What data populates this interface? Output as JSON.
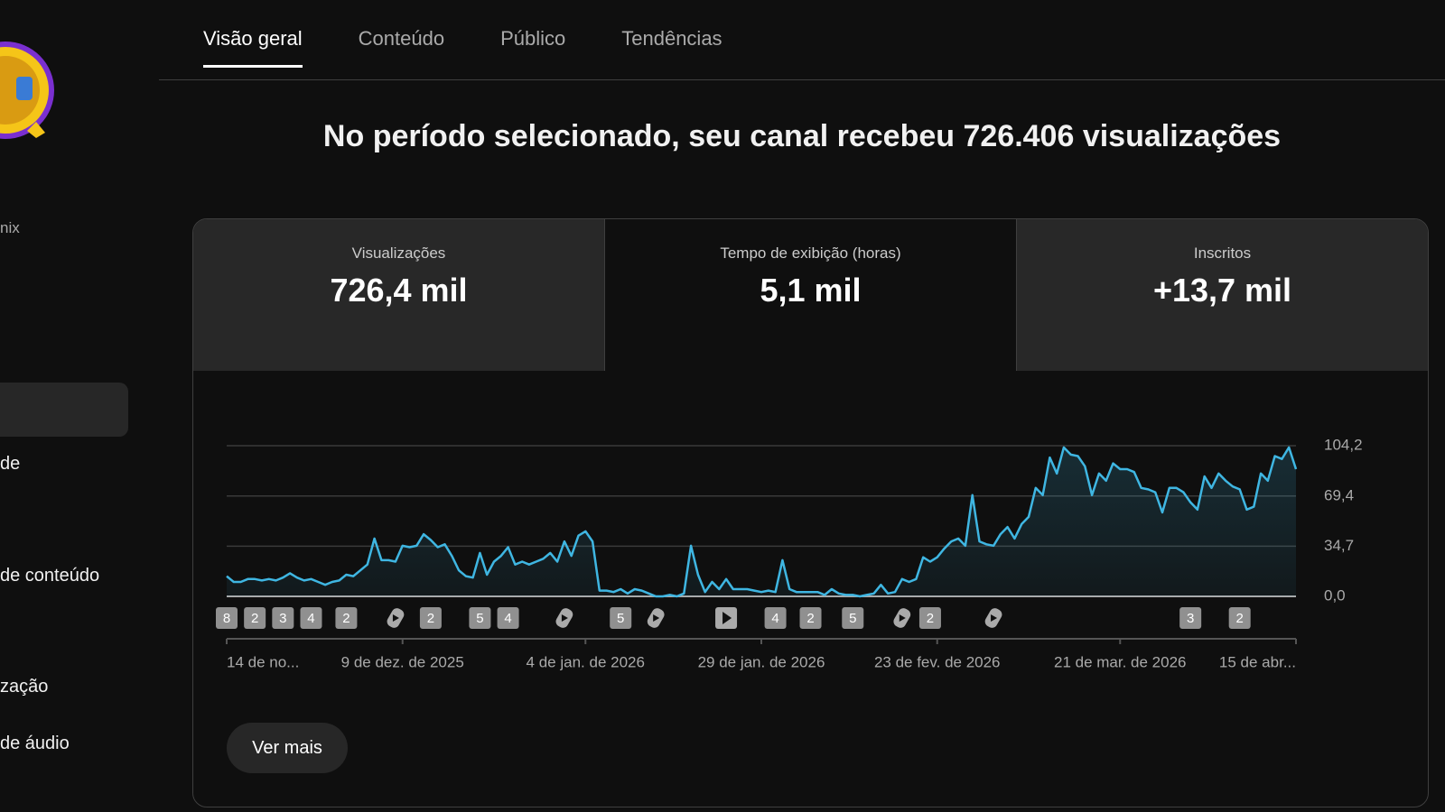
{
  "sidebar": {
    "channel_suffix": "nix",
    "items": [
      "de",
      "de conteúdo",
      "zação",
      "de áudio"
    ]
  },
  "tabs": [
    "Visão geral",
    "Conteúdo",
    "Público",
    "Tendências"
  ],
  "active_tab": 0,
  "headline": "No período selecionado, seu canal recebeu 726.406 visualizações",
  "metrics": [
    {
      "label": "Visualizações",
      "value": "726,4 mil"
    },
    {
      "label": "Tempo de exibição (horas)",
      "value": "5,1 mil"
    },
    {
      "label": "Inscritos",
      "value": "+13,7 mil"
    }
  ],
  "active_metric": 1,
  "chart_data": {
    "type": "line",
    "color": "#3fb6e2",
    "grid": true,
    "xlim": [
      0,
      152
    ],
    "xticks": [
      {
        "value": 0,
        "label": "14 de no..."
      },
      {
        "value": 25,
        "label": "9 de dez. de 2025"
      },
      {
        "value": 51,
        "label": "4 de jan. de 2026"
      },
      {
        "value": 76,
        "label": "29 de jan. de 2026"
      },
      {
        "value": 101,
        "label": "23 de fev. de 2026"
      },
      {
        "value": 127,
        "label": "21 de mar. de 2026"
      },
      {
        "value": 152,
        "label": "15 de abr..."
      }
    ],
    "ylim": [
      0,
      104.2
    ],
    "yticks": [
      {
        "value": 0,
        "label": "0,0"
      },
      {
        "value": 34.7,
        "label": "34,7"
      },
      {
        "value": 69.4,
        "label": "69,4"
      },
      {
        "value": 104.2,
        "label": "104,2"
      }
    ],
    "values": [
      14,
      10,
      10,
      12,
      12,
      11,
      12,
      11,
      13,
      16,
      13,
      11,
      12,
      10,
      8,
      10,
      11,
      15,
      14,
      18,
      22,
      40,
      25,
      25,
      24,
      35,
      34,
      35,
      43,
      39,
      34,
      36,
      28,
      18,
      14,
      13,
      30,
      15,
      24,
      28,
      34,
      22,
      24,
      22,
      24,
      26,
      30,
      24,
      38,
      28,
      42,
      45,
      38,
      4,
      4,
      3,
      5,
      2,
      5,
      4,
      2,
      0,
      0,
      1,
      0,
      2,
      35,
      15,
      3,
      10,
      5,
      12,
      5,
      5,
      5,
      4,
      3,
      4,
      3,
      25,
      5,
      3,
      3,
      3,
      3,
      1,
      5,
      2,
      1,
      1,
      0,
      1,
      2,
      8,
      2,
      3,
      12,
      10,
      12,
      27,
      24,
      27,
      33,
      38,
      40,
      35,
      70,
      38,
      36,
      35,
      43,
      48,
      40,
      50,
      55,
      75,
      70,
      96,
      85,
      103,
      98,
      97,
      90,
      70,
      85,
      80,
      92,
      88,
      88,
      86,
      75,
      74,
      72,
      58,
      75,
      75,
      72,
      65,
      60,
      83,
      75,
      85,
      80,
      76,
      74,
      60,
      62,
      85,
      80,
      97,
      95,
      103,
      88
    ],
    "events": [
      {
        "x": 0,
        "label": "8"
      },
      {
        "x": 4,
        "label": "2"
      },
      {
        "x": 8,
        "label": "3"
      },
      {
        "x": 12,
        "label": "4"
      },
      {
        "x": 17,
        "label": "2"
      },
      {
        "x": 24,
        "icon": "shorts"
      },
      {
        "x": 29,
        "label": "2"
      },
      {
        "x": 36,
        "label": "5"
      },
      {
        "x": 40,
        "label": "4"
      },
      {
        "x": 48,
        "icon": "shorts"
      },
      {
        "x": 56,
        "label": "5"
      },
      {
        "x": 61,
        "icon": "shorts"
      },
      {
        "x": 71,
        "icon": "video"
      },
      {
        "x": 78,
        "label": "4"
      },
      {
        "x": 83,
        "label": "2"
      },
      {
        "x": 89,
        "label": "5"
      },
      {
        "x": 96,
        "icon": "shorts"
      },
      {
        "x": 100,
        "label": "2"
      },
      {
        "x": 109,
        "icon": "shorts"
      },
      {
        "x": 137,
        "label": "3"
      },
      {
        "x": 144,
        "label": "2"
      }
    ]
  },
  "button": "Ver mais"
}
